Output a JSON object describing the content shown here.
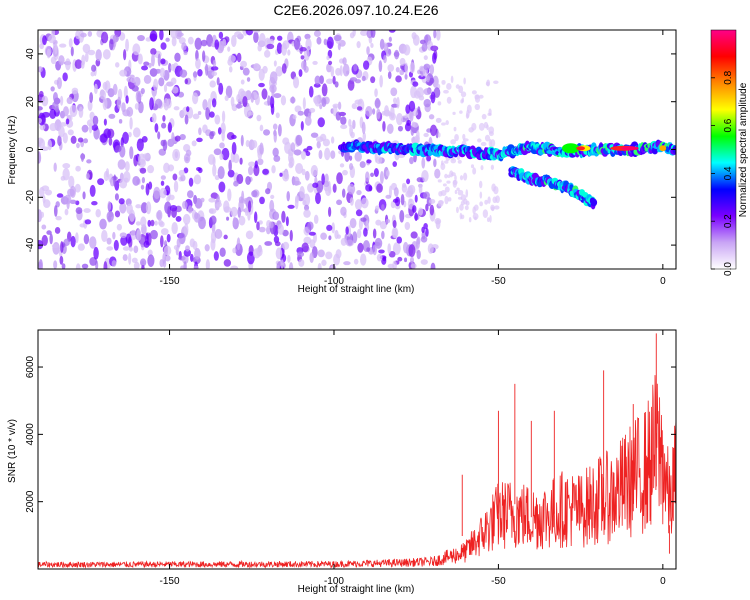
{
  "title": "C2E6.2026.097.10.24.E26",
  "chart_data": [
    {
      "type": "heatmap",
      "name": "spectrogram",
      "xlabel": "Height of straight line (km)",
      "ylabel": "Frequency (Hz)",
      "xlim": [
        -190,
        4
      ],
      "ylim": [
        -50,
        50
      ],
      "xticks": [
        -150,
        -100,
        -50,
        0
      ],
      "yticks": [
        -40,
        -20,
        0,
        20,
        40
      ],
      "colorbar": {
        "label": "Normalized spectral amplitude",
        "range": [
          0,
          1
        ],
        "ticks": [
          "0.0",
          "0.2",
          "0.4",
          "0.6",
          "0.8"
        ],
        "tick_values": [
          0.0,
          0.2,
          0.4,
          0.6,
          0.8
        ],
        "colors": [
          "#ffffff",
          "#c9a5f5",
          "#7a00ff",
          "#0000ff",
          "#00ffff",
          "#00ff00",
          "#ffff00",
          "#ff8800",
          "#ff0000",
          "#ff0088"
        ]
      },
      "features": [
        {
          "name": "main-trace",
          "x": [
            -98,
            -90,
            -75,
            -60,
            -50,
            -40,
            -30,
            -20,
            -10,
            0,
            4
          ],
          "y": [
            1,
            1,
            0,
            -1,
            -2,
            1,
            -1,
            0,
            0,
            1,
            0
          ]
        },
        {
          "name": "lower-branch",
          "x": [
            -46,
            -40,
            -34,
            -29,
            -25,
            -21
          ],
          "y": [
            -9,
            -12,
            -14,
            -16,
            -19,
            -23
          ]
        }
      ]
    },
    {
      "type": "line",
      "name": "snr",
      "xlabel": "Height of straight line (km)",
      "ylabel": "SNR (10 * v/v)",
      "xlim": [
        -190,
        4
      ],
      "ylim": [
        0,
        7100
      ],
      "xticks": [
        -150,
        -100,
        -50,
        0
      ],
      "yticks": [
        2000,
        4000,
        6000
      ],
      "color": "#ee2222",
      "envelope": {
        "x": [
          -190,
          -100,
          -80,
          -70,
          -60,
          -55,
          -50,
          -45,
          -40,
          -35,
          -30,
          -25,
          -20,
          -15,
          -10,
          -5,
          -2,
          0,
          2,
          4
        ],
        "y": [
          180,
          200,
          250,
          300,
          700,
          1400,
          2200,
          2300,
          2100,
          2200,
          2500,
          2400,
          2800,
          3000,
          3600,
          4100,
          5000,
          4500,
          2600,
          3900
        ]
      },
      "peaks": [
        {
          "x": -61,
          "y": 2800
        },
        {
          "x": -50,
          "y": 4700
        },
        {
          "x": -45,
          "y": 5500
        },
        {
          "x": -40,
          "y": 4400
        },
        {
          "x": -33,
          "y": 4700
        },
        {
          "x": -18,
          "y": 5900
        },
        {
          "x": -9,
          "y": 4900
        },
        {
          "x": -2,
          "y": 7000
        },
        {
          "x": 2,
          "y": 1300
        }
      ]
    }
  ]
}
